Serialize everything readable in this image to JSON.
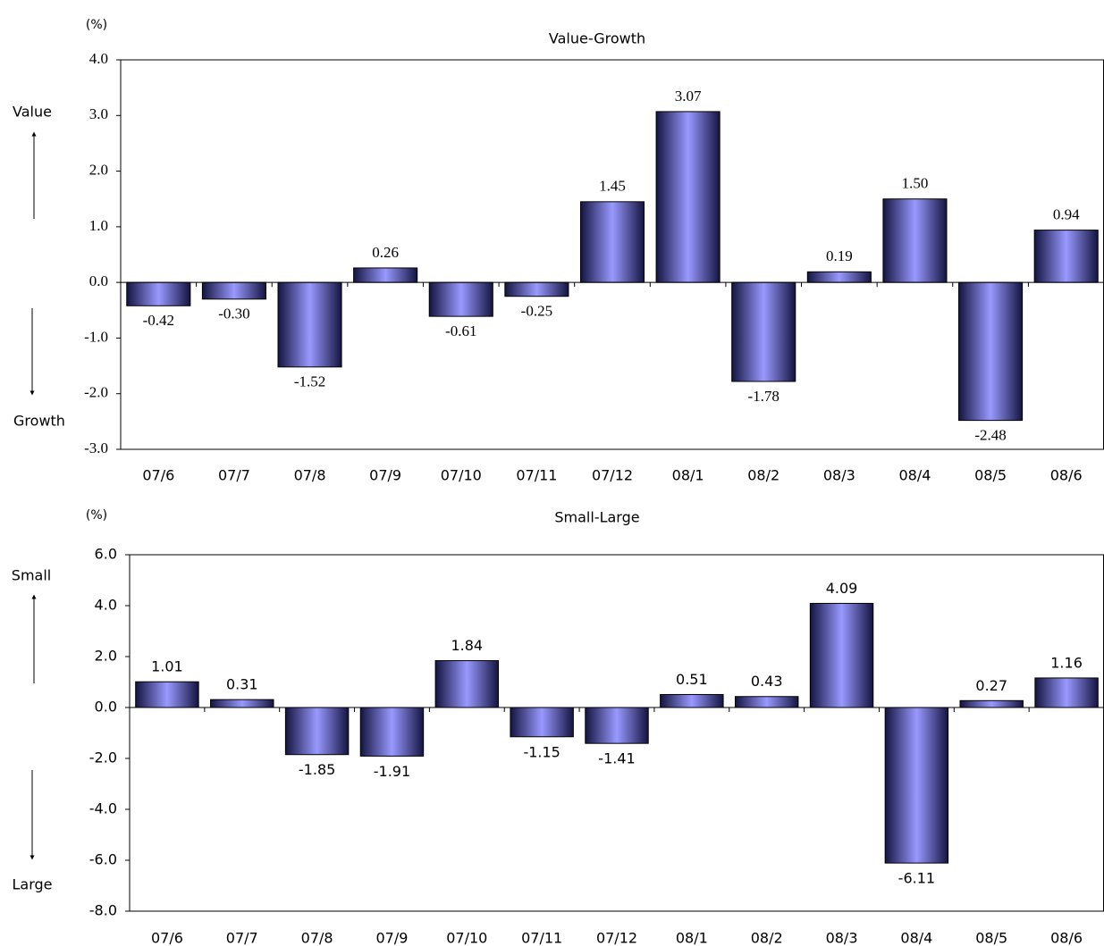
{
  "chart_data": [
    {
      "type": "bar",
      "title": "Value-Growth",
      "unit_label": "(%)",
      "annotations": [
        "Value",
        "Growth"
      ],
      "categories": [
        "07/6",
        "07/7",
        "07/8",
        "07/9",
        "07/10",
        "07/11",
        "07/12",
        "08/1",
        "08/2",
        "08/3",
        "08/4",
        "08/5",
        "08/6"
      ],
      "values": [
        -0.42,
        -0.3,
        -1.52,
        0.26,
        -0.61,
        -0.25,
        1.45,
        3.07,
        -1.78,
        0.19,
        1.5,
        -2.48,
        0.94
      ],
      "value_labels": [
        "-0.42",
        "-0.30",
        "-1.52",
        "0.26",
        "-0.61",
        "-0.25",
        "1.45",
        "3.07",
        "-1.78",
        "0.19",
        "1.50",
        "-2.48",
        "0.94"
      ],
      "color": "#9999ff",
      "ylim": [
        -3,
        4
      ],
      "yticks": [
        {
          "value": 4,
          "label": "4.0"
        },
        {
          "value": 3,
          "label": "3.0"
        },
        {
          "value": 2,
          "label": "2.0"
        },
        {
          "value": 1,
          "label": "1.0"
        },
        {
          "value": 0,
          "label": "0.0"
        },
        {
          "value": -1,
          "label": "-1.0"
        },
        {
          "value": -2,
          "label": "-2.0"
        },
        {
          "value": -3,
          "label": "-3.0"
        }
      ]
    },
    {
      "type": "bar",
      "title": "Small-Large",
      "unit_label": "(%)",
      "annotations": [
        "Small",
        "Large"
      ],
      "categories": [
        "07/6",
        "07/7",
        "07/8",
        "07/9",
        "07/10",
        "07/11",
        "07/12",
        "08/1",
        "08/2",
        "08/3",
        "08/4",
        "08/5",
        "08/6"
      ],
      "values": [
        1.01,
        0.31,
        -1.85,
        -1.91,
        1.84,
        -1.15,
        -1.41,
        0.51,
        0.43,
        4.09,
        -6.11,
        0.27,
        1.16
      ],
      "value_labels": [
        "1.01",
        "0.31",
        "-1.85",
        "-1.91",
        "1.84",
        "-1.15",
        "-1.41",
        "0.51",
        "0.43",
        "4.09",
        "-6.11",
        "0.27",
        "1.16"
      ],
      "color": "#9999ff",
      "ylim": [
        -8,
        6
      ],
      "yticks": [
        {
          "value": 6,
          "label": "6.0"
        },
        {
          "value": 4,
          "label": "4.0"
        },
        {
          "value": 2,
          "label": "2.0"
        },
        {
          "value": 0,
          "label": "0.0"
        },
        {
          "value": -2,
          "label": "-2.0"
        },
        {
          "value": -4,
          "label": "-4.0"
        },
        {
          "value": -6,
          "label": "-6.0"
        },
        {
          "value": -8,
          "label": "-8.0"
        }
      ]
    }
  ]
}
